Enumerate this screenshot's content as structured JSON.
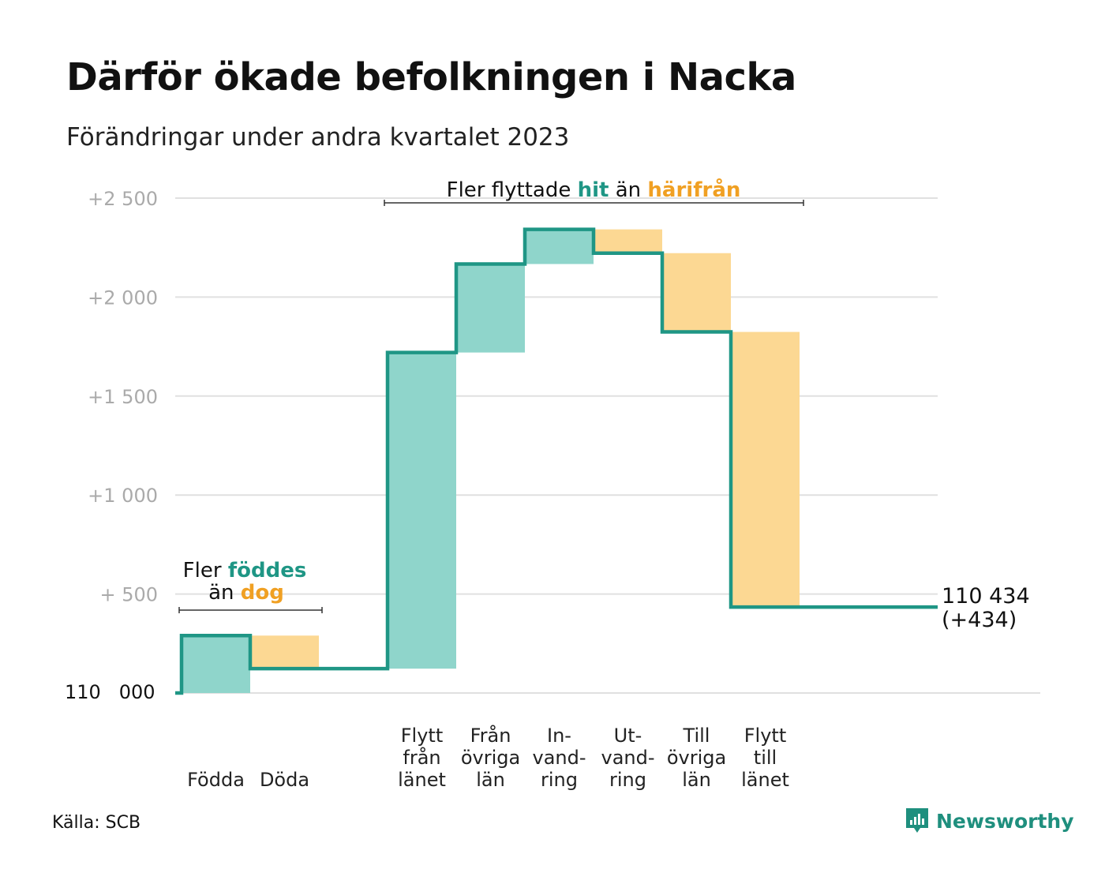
{
  "title": "Därför ökade befolkningen i Nacka",
  "subtitle": "Förändringar under andra kvartalet 2023",
  "source": "Källa: SCB",
  "brand": {
    "name": "Newsworthy"
  },
  "colors": {
    "increase": "#8fd5cb",
    "decrease": "#fcd893",
    "line": "#1f9685",
    "hit": "#1f9685",
    "away": "#f0a023",
    "grid": "#e0e0e0",
    "tick": "#aaaaaa"
  },
  "annotations": {
    "birth": {
      "line1_prefix": "Fler ",
      "line1_highlight": "föddes",
      "line2_prefix": "än ",
      "line2_highlight": "dog"
    },
    "migration": {
      "prefix": "Fler flyttade ",
      "highlight1": "hit",
      "middle": " än ",
      "highlight2": "härifrån"
    }
  },
  "end_label": {
    "line1": "110 434",
    "line2": "(+434)"
  },
  "chart_data": {
    "type": "waterfall",
    "base_value": 110000,
    "base_label": "110   000",
    "ylim": [
      0,
      2500
    ],
    "yticks": [
      {
        "value": 500,
        "label": "+   500"
      },
      {
        "value": 1000,
        "label": "+1   000"
      },
      {
        "value": 1500,
        "label": "+1   500"
      },
      {
        "value": 2000,
        "label": "+2   000"
      },
      {
        "value": 2500,
        "label": "+2   500"
      }
    ],
    "grid": true,
    "steps": [
      {
        "label": [
          "",
          "",
          "Födda"
        ],
        "change": 290,
        "kind": "increase"
      },
      {
        "label": [
          "",
          "",
          "Döda"
        ],
        "change": -167,
        "kind": "decrease"
      },
      {
        "label": [
          "",
          "",
          ""
        ],
        "change": 0,
        "kind": "gap"
      },
      {
        "label": [
          "Flytt",
          "från",
          "länet"
        ],
        "change": 1597,
        "kind": "increase"
      },
      {
        "label": [
          "Från",
          "övriga",
          "län"
        ],
        "change": 447,
        "kind": "increase"
      },
      {
        "label": [
          "In-",
          "vand-",
          "ring"
        ],
        "change": 175,
        "kind": "increase"
      },
      {
        "label": [
          "Ut-",
          "vand-",
          "ring"
        ],
        "change": -120,
        "kind": "decrease"
      },
      {
        "label": [
          "Till",
          "övriga",
          "län"
        ],
        "change": -398,
        "kind": "decrease"
      },
      {
        "label": [
          "Flytt",
          "till",
          "länet"
        ],
        "change": -1390,
        "kind": "decrease"
      }
    ],
    "final_value": 434
  }
}
